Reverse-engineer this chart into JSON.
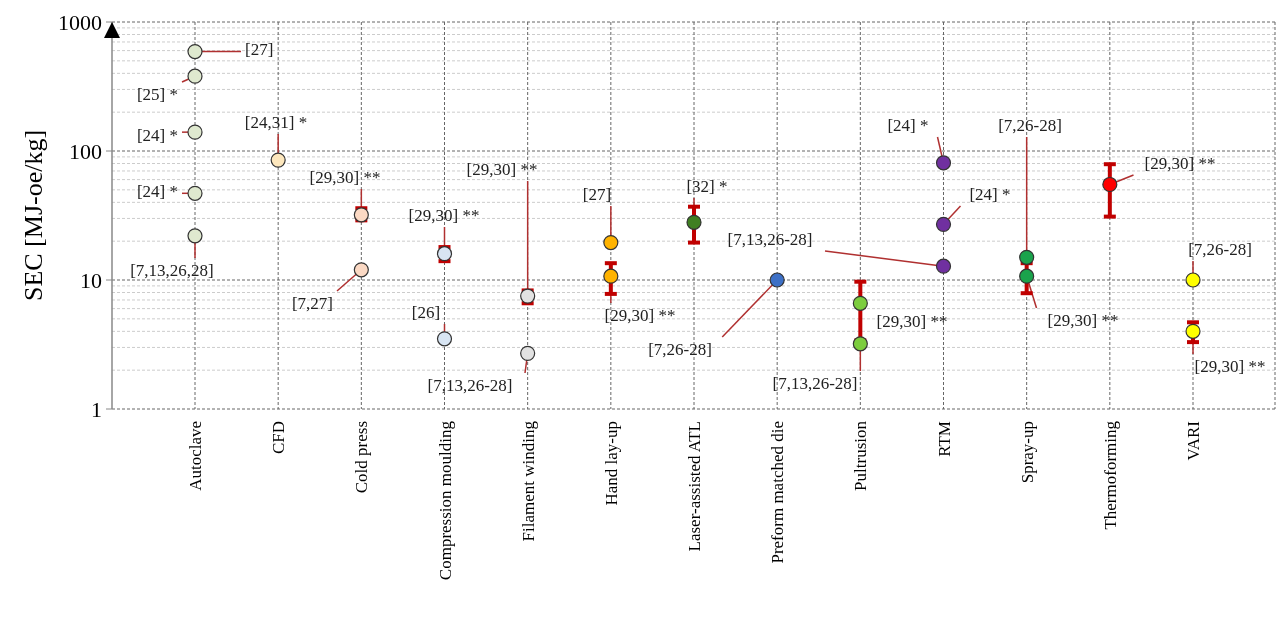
{
  "chart_data": {
    "type": "scatter",
    "ylabel": "SEC [MJ-oe/kg]",
    "log": "y",
    "ylim": [
      1,
      1000
    ],
    "yticks": [
      1,
      10,
      100,
      1000
    ],
    "grid": true,
    "marker": "circle",
    "categories": [
      "Autoclave",
      "CFD",
      "Cold press",
      "Compression moulding",
      "Filament winding",
      "Hand lay-up",
      "Laser-assisted ATL",
      "Preform matched die",
      "Pultrusion",
      "RTM",
      "Spray-up",
      "Thermoforming",
      "VARI"
    ],
    "series": [
      {
        "color": "#dfe9cf",
        "x": [
          "Autoclave",
          "Autoclave",
          "Autoclave",
          "Autoclave",
          "Autoclave"
        ],
        "values": [
          590,
          380,
          140,
          47,
          22
        ],
        "errors": [
          null,
          null,
          null,
          null,
          null
        ]
      },
      {
        "color": "#fde7bd",
        "x": [
          "CFD"
        ],
        "values": [
          85
        ],
        "errors": [
          null
        ]
      },
      {
        "color": "#fbd9c4",
        "x": [
          "Cold press",
          "Cold press"
        ],
        "values": [
          32,
          12
        ],
        "errors": [
          [
            29,
            36
          ],
          null
        ]
      },
      {
        "color": "#d8e5f3",
        "x": [
          "Compression moulding",
          "Compression moulding"
        ],
        "values": [
          16,
          3.5
        ],
        "errors": [
          [
            14,
            18
          ],
          null
        ]
      },
      {
        "color": "#e2e2e2",
        "x": [
          "Filament winding",
          "Filament winding"
        ],
        "values": [
          7.5,
          2.7
        ],
        "errors": [
          [
            6.6,
            8.3
          ],
          null
        ]
      },
      {
        "color": "#ffb300",
        "x": [
          "Hand lay-up",
          "Hand lay-up"
        ],
        "values": [
          19.5,
          10.7
        ],
        "errors": [
          null,
          [
            7.8,
            13.5
          ]
        ]
      },
      {
        "color": "#3f7f22",
        "x": [
          "Laser-assisted ATL"
        ],
        "values": [
          28
        ],
        "errors": [
          [
            19.5,
            37
          ]
        ]
      },
      {
        "color": "#3d70c6",
        "x": [
          "Preform matched die"
        ],
        "values": [
          10
        ],
        "errors": [
          null
        ]
      },
      {
        "color": "#7ccd3e",
        "x": [
          "Pultrusion",
          "Pultrusion"
        ],
        "values": [
          6.6,
          3.2
        ],
        "errors": [
          [
            3.4,
            9.7
          ],
          null
        ]
      },
      {
        "color": "#7030a0",
        "x": [
          "RTM",
          "RTM",
          "RTM"
        ],
        "values": [
          81,
          27,
          12.8
        ],
        "errors": [
          null,
          null,
          null
        ]
      },
      {
        "color": "#1aa34c",
        "x": [
          "Spray-up",
          "Spray-up"
        ],
        "values": [
          15,
          10.7
        ],
        "errors": [
          null,
          [
            7.9,
            13.5
          ]
        ]
      },
      {
        "color": "#ff0000",
        "x": [
          "Thermoforming"
        ],
        "values": [
          55
        ],
        "errors": [
          [
            31,
            79
          ]
        ]
      },
      {
        "color": "#ffff00",
        "x": [
          "VARI",
          "VARI"
        ],
        "values": [
          10,
          4.0
        ],
        "errors": [
          null,
          [
            3.3,
            4.7
          ]
        ]
      }
    ],
    "annotations": [
      {
        "text": "[27]",
        "x": "Autoclave",
        "y": 590
      },
      {
        "text": "[25] *",
        "x": "Autoclave",
        "y": 380
      },
      {
        "text": "[24] *",
        "x": "Autoclave",
        "y": 140
      },
      {
        "text": "[24] *",
        "x": "Autoclave",
        "y": 47
      },
      {
        "text": "[7,13,26,28]",
        "x": "Autoclave",
        "y": 22
      },
      {
        "text": "[24,31] *",
        "x": "CFD",
        "y": 85
      },
      {
        "text": "[29,30] **",
        "x": "Cold press",
        "y": 32
      },
      {
        "text": "[7,27]",
        "x": "Cold press",
        "y": 12
      },
      {
        "text": "[29,30] **",
        "x": "Compression moulding",
        "y": 16
      },
      {
        "text": "[26]",
        "x": "Compression moulding",
        "y": 3.5
      },
      {
        "text": "[29,30] **",
        "x": "Filament winding",
        "y": 7.5
      },
      {
        "text": "[7,13,26-28]",
        "x": "Filament winding",
        "y": 2.7
      },
      {
        "text": "[27]",
        "x": "Hand lay-up",
        "y": 19.5
      },
      {
        "text": "[29,30] **",
        "x": "Hand lay-up",
        "y": 10.7
      },
      {
        "text": "[32] *",
        "x": "Laser-assisted ATL",
        "y": 28
      },
      {
        "text": "[7,13,26-28]",
        "x": "RTM",
        "y": 12.8
      },
      {
        "text": "[7,26-28]",
        "x": "Preform matched die",
        "y": 10
      },
      {
        "text": "[29,30] **",
        "x": "Pultrusion",
        "y": 6.6
      },
      {
        "text": "[7,13,26-28]",
        "x": "Pultrusion",
        "y": 3.2
      },
      {
        "text": "[24] *",
        "x": "RTM",
        "y": 81
      },
      {
        "text": "[24] *",
        "x": "RTM",
        "y": 27
      },
      {
        "text": "[7,26-28]",
        "x": "Spray-up",
        "y": 15
      },
      {
        "text": "[29,30] **",
        "x": "Spray-up",
        "y": 10.7
      },
      {
        "text": "[29,30] **",
        "x": "Thermoforming",
        "y": 55
      },
      {
        "text": "[7,26-28]",
        "x": "VARI",
        "y": 10
      },
      {
        "text": "[29,30] **",
        "x": "VARI",
        "y": 4.0
      }
    ]
  }
}
